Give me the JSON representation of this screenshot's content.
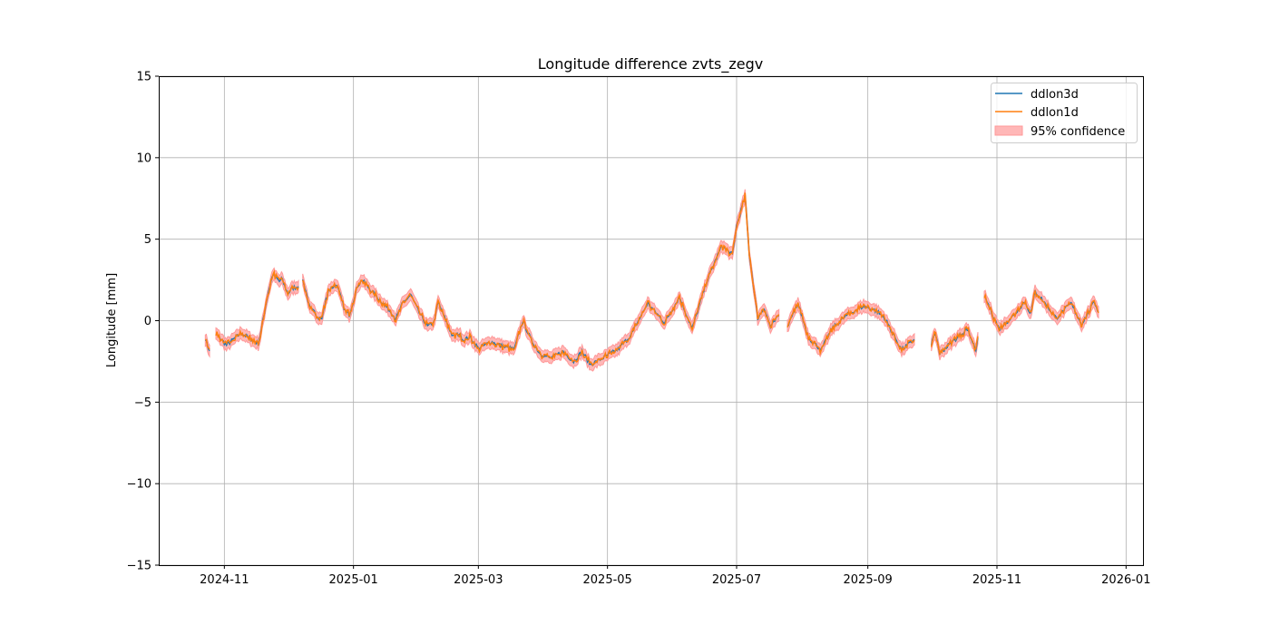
{
  "chart_data": {
    "type": "line",
    "title": "Longitude difference zvts_zegv",
    "xlabel": "",
    "ylabel": "Longitude [mm]",
    "ylim": [
      -15,
      15
    ],
    "xlim": [
      "2024-10-01",
      "2026-01-09"
    ],
    "grid": true,
    "legend_position": "top-right",
    "yticks": [
      -15,
      -10,
      -5,
      0,
      5,
      10,
      15
    ],
    "ytick_labels": [
      "−15",
      "−10",
      "−5",
      "0",
      "5",
      "10",
      "15"
    ],
    "xticks": [
      "2024-11-01",
      "2025-01-01",
      "2025-03-01",
      "2025-05-01",
      "2025-07-01",
      "2025-09-01",
      "2025-11-01",
      "2026-01-01"
    ],
    "xtick_labels": [
      "2024-11",
      "2025-01",
      "2025-03",
      "2025-05",
      "2025-07",
      "2025-09",
      "2025-11",
      "2026-01"
    ],
    "series": [
      {
        "name": "ddlon3d",
        "color": "#1f77b4"
      },
      {
        "name": "ddlon1d",
        "color": "#ff7f0e"
      }
    ],
    "confidence": {
      "name": "95% confidence",
      "color": "#ff9999",
      "halfwidth_mm": 0.35
    },
    "segments": [
      [
        [
          "2024-10-23",
          -1.1
        ],
        [
          "2024-10-25",
          -1.85
        ]
      ],
      [
        [
          "2024-10-28",
          -0.8
        ],
        [
          "2024-11-02",
          -1.5
        ],
        [
          "2024-11-09",
          -0.75
        ],
        [
          "2024-11-13",
          -1.1
        ],
        [
          "2024-11-17",
          -1.4
        ],
        [
          "2024-11-18",
          -0.9
        ],
        [
          "2024-11-21",
          1.3
        ],
        [
          "2024-11-23",
          2.4
        ],
        [
          "2024-11-24",
          2.85
        ],
        [
          "2024-11-27",
          2.4
        ],
        [
          "2024-11-28",
          2.6
        ],
        [
          "2024-12-01",
          1.65
        ],
        [
          "2024-12-03",
          2.0
        ],
        [
          "2024-12-06",
          2.1
        ]
      ],
      [
        [
          "2024-12-08",
          2.4
        ],
        [
          "2024-12-11",
          1.0
        ],
        [
          "2024-12-15",
          0.2
        ],
        [
          "2024-12-17",
          0.1
        ],
        [
          "2024-12-20",
          1.85
        ],
        [
          "2024-12-24",
          2.25
        ],
        [
          "2024-12-28",
          0.6
        ],
        [
          "2024-12-30",
          0.35
        ],
        [
          "2025-01-03",
          2.15
        ],
        [
          "2025-01-05",
          2.5
        ],
        [
          "2025-01-10",
          1.75
        ],
        [
          "2025-01-19",
          0.5
        ],
        [
          "2025-01-21",
          0.1
        ],
        [
          "2025-01-24",
          1.0
        ],
        [
          "2025-01-28",
          1.6
        ],
        [
          "2025-02-01",
          0.5
        ],
        [
          "2025-02-05",
          -0.35
        ],
        [
          "2025-02-08",
          -0.1
        ],
        [
          "2025-02-10",
          1.15
        ],
        [
          "2025-02-12",
          0.5
        ],
        [
          "2025-02-17",
          -1.0
        ],
        [
          "2025-02-20",
          -0.8
        ],
        [
          "2025-02-22",
          -1.2
        ],
        [
          "2025-02-25",
          -1.0
        ],
        [
          "2025-03-01",
          -1.7
        ],
        [
          "2025-03-07",
          -1.3
        ],
        [
          "2025-03-13",
          -1.6
        ],
        [
          "2025-03-18",
          -1.75
        ],
        [
          "2025-03-22",
          0.0
        ],
        [
          "2025-03-26",
          -1.2
        ],
        [
          "2025-03-30",
          -2.0
        ],
        [
          "2025-04-04",
          -2.3
        ],
        [
          "2025-04-10",
          -1.9
        ],
        [
          "2025-04-15",
          -2.5
        ],
        [
          "2025-04-19",
          -1.9
        ],
        [
          "2025-04-23",
          -2.7
        ],
        [
          "2025-04-28",
          -2.35
        ],
        [
          "2025-05-06",
          -1.75
        ],
        [
          "2025-05-12",
          -0.9
        ],
        [
          "2025-05-20",
          1.07
        ],
        [
          "2025-05-28",
          -0.13
        ],
        [
          "2025-06-04",
          1.44
        ],
        [
          "2025-06-10",
          -0.5
        ],
        [
          "2025-06-17",
          2.46
        ],
        [
          "2025-06-24",
          4.6
        ],
        [
          "2025-06-29",
          4.04
        ],
        [
          "2025-07-01",
          5.8
        ],
        [
          "2025-07-05",
          7.65
        ],
        [
          "2025-07-07",
          4.1
        ],
        [
          "2025-07-11",
          0.15
        ],
        [
          "2025-07-14",
          0.8
        ],
        [
          "2025-07-17",
          -0.4
        ],
        [
          "2025-07-21",
          0.33
        ]
      ],
      [
        [
          "2025-07-25",
          -0.4
        ],
        [
          "2025-07-30",
          1.07
        ],
        [
          "2025-08-04",
          -1.05
        ],
        [
          "2025-08-10",
          -1.8
        ],
        [
          "2025-08-15",
          -0.5
        ],
        [
          "2025-08-22",
          0.33
        ],
        [
          "2025-08-30",
          0.9
        ],
        [
          "2025-09-05",
          0.6
        ],
        [
          "2025-09-09",
          0.15
        ],
        [
          "2025-09-17",
          -1.8
        ],
        [
          "2025-09-23",
          -1.15
        ]
      ],
      [
        [
          "2025-10-01",
          -1.4
        ],
        [
          "2025-10-03",
          -0.8
        ],
        [
          "2025-10-05",
          -2.0
        ],
        [
          "2025-10-10",
          -1.4
        ],
        [
          "2025-10-18",
          -0.5
        ],
        [
          "2025-10-22",
          -1.8
        ],
        [
          "2025-10-23",
          -1.05
        ]
      ],
      [
        [
          "2025-10-26",
          1.54
        ],
        [
          "2025-11-02",
          -0.5
        ],
        [
          "2025-11-09",
          0.33
        ],
        [
          "2025-11-14",
          1.17
        ],
        [
          "2025-11-17",
          0.43
        ],
        [
          "2025-11-19",
          1.8
        ],
        [
          "2025-11-22",
          1.35
        ],
        [
          "2025-11-29",
          0.15
        ],
        [
          "2025-12-06",
          1.07
        ],
        [
          "2025-12-11",
          -0.22
        ],
        [
          "2025-12-17",
          1.17
        ],
        [
          "2025-12-19",
          0.52
        ]
      ]
    ]
  }
}
